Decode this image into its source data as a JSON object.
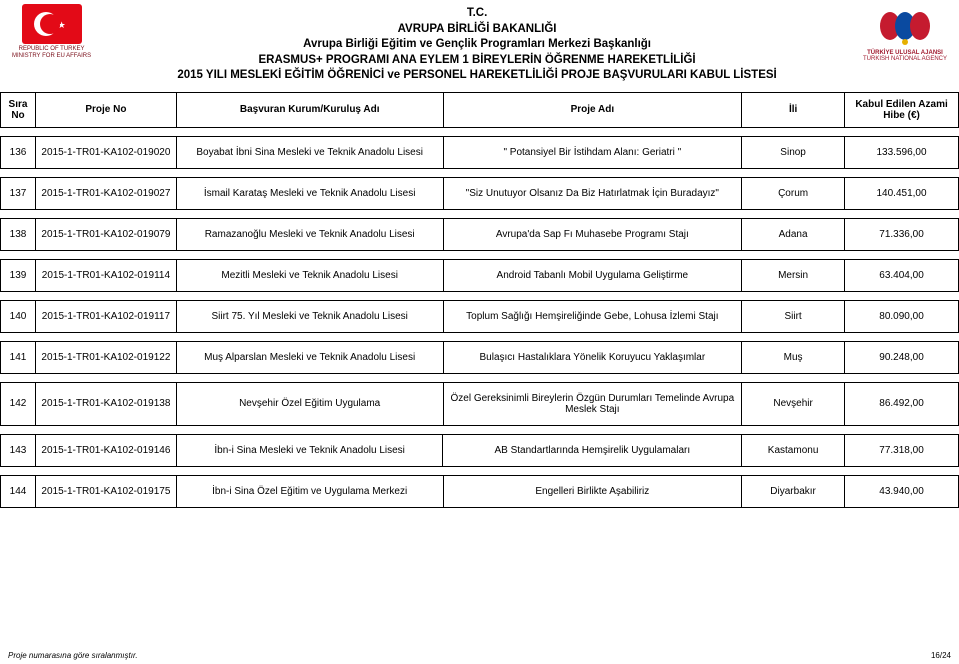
{
  "header": {
    "line1": "T.C.",
    "line2": "AVRUPA BİRLİĞİ BAKANLIĞI",
    "line3": "Avrupa Birliği Eğitim ve Gençlik Programları Merkezi Başkanlığı",
    "line4": "ERASMUS+ PROGRAMI ANA EYLEM 1 BİREYLERİN ÖĞRENME HAREKETLİLİĞİ",
    "line5": "2015 YILI MESLEKİ EĞİTİM ÖĞRENİCİ ve PERSONEL HAREKETLİLİĞİ PROJE BAŞVURULARI KABUL LİSTESİ",
    "left_sub1": "REPUBLIC OF TURKEY",
    "left_sub2": "MINISTRY FOR EU AFFAIRS",
    "right_name": "TÜRKİYE ULUSAL AJANSI",
    "right_sub": "TURKISH NATIONAL AGENCY"
  },
  "columns": {
    "sira": "Sıra No",
    "proje_no": "Proje No",
    "kurum": "Başvuran Kurum/Kuruluş Adı",
    "proje_adi": "Proje Adı",
    "ili": "İli",
    "hibe": "Kabul Edilen Azami Hibe (€)"
  },
  "rows": [
    {
      "sira": "136",
      "proje_no": "2015-1-TR01-KA102-019020",
      "kurum": "Boyabat İbni Sina Mesleki ve Teknik Anadolu Lisesi",
      "proje_adi": "\" Potansiyel Bir İstihdam Alanı: Geriatri \"",
      "ili": "Sinop",
      "hibe": "133.596,00"
    },
    {
      "sira": "137",
      "proje_no": "2015-1-TR01-KA102-019027",
      "kurum": "İsmail Karataş Mesleki ve Teknik Anadolu Lisesi",
      "proje_adi": "\"Siz Unutuyor Olsanız Da Biz Hatırlatmak İçin Buradayız\"",
      "ili": "Çorum",
      "hibe": "140.451,00"
    },
    {
      "sira": "138",
      "proje_no": "2015-1-TR01-KA102-019079",
      "kurum": "Ramazanoğlu Mesleki ve Teknik Anadolu Lisesi",
      "proje_adi": "Avrupa'da Sap Fı Muhasebe Programı Stajı",
      "ili": "Adana",
      "hibe": "71.336,00"
    },
    {
      "sira": "139",
      "proje_no": "2015-1-TR01-KA102-019114",
      "kurum": "Mezitli Mesleki ve Teknik Anadolu Lisesi",
      "proje_adi": "Android Tabanlı Mobil Uygulama Geliştirme",
      "ili": "Mersin",
      "hibe": "63.404,00"
    },
    {
      "sira": "140",
      "proje_no": "2015-1-TR01-KA102-019117",
      "kurum": "Siirt 75. Yıl Mesleki ve Teknik Anadolu Lisesi",
      "proje_adi": "Toplum Sağlığı Hemşireliğinde Gebe, Lohusa İzlemi Stajı",
      "ili": "Siirt",
      "hibe": "80.090,00"
    },
    {
      "sira": "141",
      "proje_no": "2015-1-TR01-KA102-019122",
      "kurum": "Muş Alparslan Mesleki ve Teknik Anadolu Lisesi",
      "proje_adi": "Bulaşıcı Hastalıklara Yönelik Koruyucu Yaklaşımlar",
      "ili": "Muş",
      "hibe": "90.248,00"
    },
    {
      "sira": "142",
      "proje_no": "2015-1-TR01-KA102-019138",
      "kurum": "Nevşehir Özel Eğitim Uygulama",
      "proje_adi": "Özel Gereksinimli Bireylerin Özgün Durumları Temelinde Avrupa Meslek Stajı",
      "ili": "Nevşehir",
      "hibe": "86.492,00"
    },
    {
      "sira": "143",
      "proje_no": "2015-1-TR01-KA102-019146",
      "kurum": "İbn-i Sina Mesleki ve Teknik Anadolu Lisesi",
      "proje_adi": "AB Standartlarında Hemşirelik Uygulamaları",
      "ili": "Kastamonu",
      "hibe": "77.318,00"
    },
    {
      "sira": "144",
      "proje_no": "2015-1-TR01-KA102-019175",
      "kurum": "İbn-i Sina Özel Eğitim ve Uygulama Merkezi",
      "proje_adi": "Engelleri Birlikte Aşabiliriz",
      "ili": "Diyarbakır",
      "hibe": "43.940,00"
    }
  ],
  "footer": {
    "note": "Proje numarasına göre sıralanmıştır.",
    "page": "16/24"
  },
  "style": {
    "border_color": "#000000",
    "bg": "#ffffff",
    "font_size_title": 11.5,
    "font_size_body": 10
  }
}
